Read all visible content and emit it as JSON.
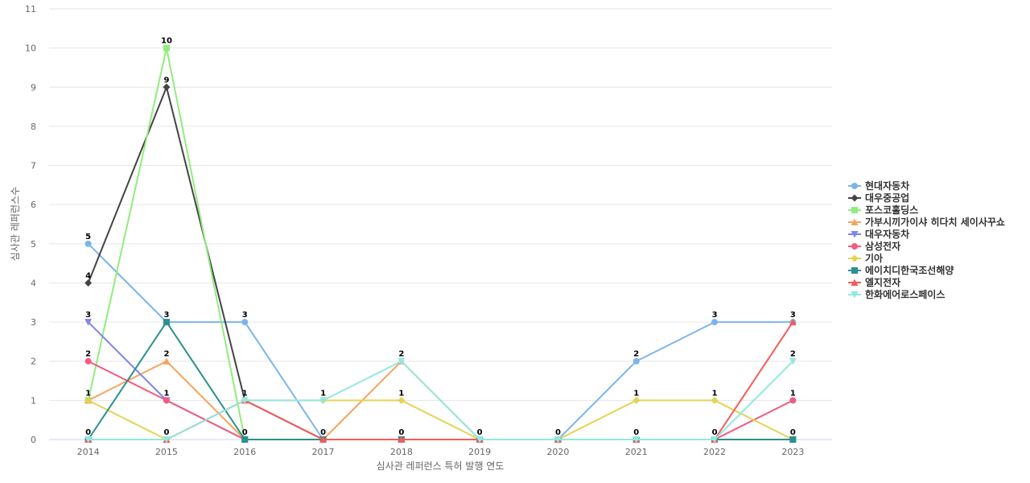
{
  "chart_data": {
    "type": "line",
    "title": "",
    "xlabel": "심사관 레퍼런스 특허 발행 연도",
    "ylabel": "심사관 레퍼런스수",
    "ylim": [
      0,
      11
    ],
    "y_ticks": [
      0,
      1,
      2,
      3,
      4,
      5,
      6,
      7,
      8,
      9,
      10,
      11
    ],
    "grid": true,
    "legend_position": "right",
    "categories": [
      "2014",
      "2015",
      "2016",
      "2017",
      "2018",
      "2019",
      "2020",
      "2021",
      "2022",
      "2023"
    ],
    "series": [
      {
        "name": "현대자동차",
        "color": "#7cb5ec",
        "marker": "circle",
        "values": [
          5,
          3,
          3,
          0,
          0,
          0,
          0,
          2,
          3,
          3
        ]
      },
      {
        "name": "대우중공업",
        "color": "#434348",
        "marker": "diamond",
        "values": [
          4,
          9,
          1,
          0,
          0,
          0,
          0,
          0,
          0,
          0
        ]
      },
      {
        "name": "포스코홀딩스",
        "color": "#90ed7d",
        "marker": "square",
        "values": [
          1,
          10,
          0,
          0,
          0,
          0,
          0,
          0,
          0,
          0
        ]
      },
      {
        "name": "가부시끼가이샤 히다치 세이사꾸쇼",
        "color": "#f7a35c",
        "marker": "triangle",
        "values": [
          1,
          2,
          0,
          0,
          2,
          0,
          0,
          0,
          0,
          0
        ]
      },
      {
        "name": "대우자동차",
        "color": "#8085e9",
        "marker": "triangle-down",
        "values": [
          3,
          1,
          0,
          0,
          0,
          0,
          0,
          0,
          0,
          0
        ]
      },
      {
        "name": "삼성전자",
        "color": "#f15c80",
        "marker": "circle",
        "values": [
          2,
          1,
          0,
          0,
          0,
          0,
          0,
          0,
          0,
          1
        ]
      },
      {
        "name": "기아",
        "color": "#e4d354",
        "marker": "diamond",
        "values": [
          1,
          0,
          1,
          1,
          1,
          0,
          0,
          1,
          1,
          0
        ]
      },
      {
        "name": "에이치디한국조선해양",
        "color": "#2b908f",
        "marker": "square",
        "values": [
          0,
          3,
          0,
          0,
          0,
          0,
          0,
          0,
          0,
          0
        ]
      },
      {
        "name": "엘지전자",
        "color": "#f45b5b",
        "marker": "triangle",
        "values": [
          0,
          0,
          1,
          0,
          0,
          0,
          0,
          0,
          0,
          3
        ]
      },
      {
        "name": "한화에어로스페이스",
        "color": "#91e8e1",
        "marker": "triangle-down",
        "values": [
          0,
          0,
          1,
          1,
          2,
          0,
          0,
          0,
          0,
          2
        ]
      }
    ],
    "data_labels": [
      {
        "category": "2014",
        "text": "5"
      },
      {
        "category": "2014",
        "text": "4"
      },
      {
        "category": "2014",
        "text": "3"
      },
      {
        "category": "2014",
        "text": "2"
      },
      {
        "category": "2014",
        "text": "1"
      },
      {
        "category": "2014",
        "text": "0"
      },
      {
        "category": "2015",
        "text": "10"
      },
      {
        "category": "2015",
        "text": "9"
      },
      {
        "category": "2015",
        "text": "3"
      },
      {
        "category": "2015",
        "text": "2"
      },
      {
        "category": "2015",
        "text": "1"
      },
      {
        "category": "2015",
        "text": "0"
      },
      {
        "category": "2016",
        "text": "3"
      },
      {
        "category": "2016",
        "text": "1"
      },
      {
        "category": "2016",
        "text": "0"
      },
      {
        "category": "2017",
        "text": "1"
      },
      {
        "category": "2017",
        "text": "0"
      },
      {
        "category": "2018",
        "text": "2"
      },
      {
        "category": "2018",
        "text": "1"
      },
      {
        "category": "2018",
        "text": "0"
      },
      {
        "category": "2019",
        "text": "0"
      },
      {
        "category": "2020",
        "text": "0"
      },
      {
        "category": "2021",
        "text": "2"
      },
      {
        "category": "2021",
        "text": "1"
      },
      {
        "category": "2021",
        "text": "0"
      },
      {
        "category": "2022",
        "text": "3"
      },
      {
        "category": "2022",
        "text": "1"
      },
      {
        "category": "2022",
        "text": "0"
      },
      {
        "category": "2023",
        "text": "3"
      },
      {
        "category": "2023",
        "text": "2"
      },
      {
        "category": "2023",
        "text": "1"
      },
      {
        "category": "2023",
        "text": "0"
      }
    ]
  }
}
